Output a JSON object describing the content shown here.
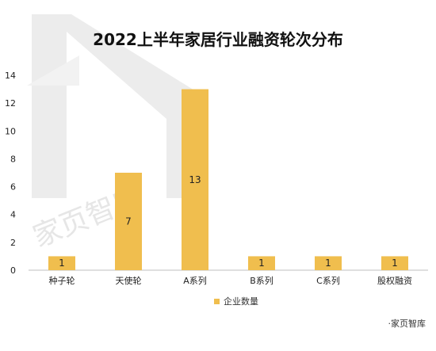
{
  "chart_data": {
    "type": "bar",
    "title": "2022上半年家居行业融资轮次分布",
    "categories": [
      "种子轮",
      "天使轮",
      "A系列",
      "B系列",
      "C系列",
      "股权融资"
    ],
    "series": [
      {
        "name": "企业数量",
        "values": [
          1,
          7,
          13,
          1,
          1,
          1
        ]
      }
    ],
    "ylim": [
      0,
      14
    ],
    "yticks": [
      0,
      2,
      4,
      6,
      8,
      10,
      12,
      14
    ],
    "data_labels": true,
    "grid": false,
    "legend": "bottom"
  },
  "colors": {
    "bar": "#F0BE4E",
    "axis": "#bfbfbf",
    "text": "#222222",
    "watermark": "#ececec"
  },
  "watermark": {
    "text": "家页智库"
  },
  "source_note": "·家页智库"
}
